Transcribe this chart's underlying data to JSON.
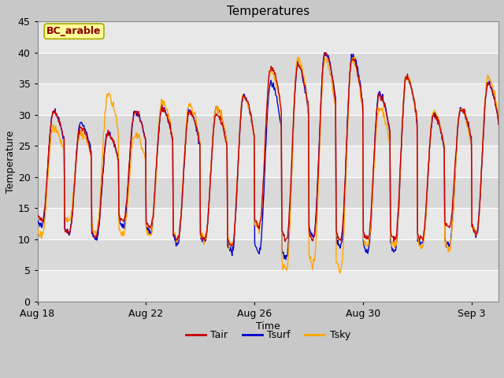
{
  "title": "Temperatures",
  "xlabel": "Time",
  "ylabel": "Temperature",
  "ylim": [
    0,
    45
  ],
  "annotation_text": "BC_arable",
  "annotation_color": "#8B0000",
  "annotation_bg": "#FFFF99",
  "annotation_edge": "#AAAA00",
  "fig_bg": "#C8C8C8",
  "plot_bg": "#E8E8E8",
  "grid_color": "#FFFFFF",
  "line_colors": {
    "Tair": "#CC0000",
    "Tsurf": "#0000CC",
    "Tsky": "#FFA500"
  },
  "x_tick_labels": [
    "Aug 18",
    "Aug 22",
    "Aug 26",
    "Aug 30",
    "Sep 3"
  ],
  "x_tick_positions": [
    0,
    4,
    8,
    12,
    16
  ],
  "y_ticks": [
    0,
    5,
    10,
    15,
    20,
    25,
    30,
    35,
    40,
    45
  ],
  "num_days": 17,
  "pts_per_day": 48
}
